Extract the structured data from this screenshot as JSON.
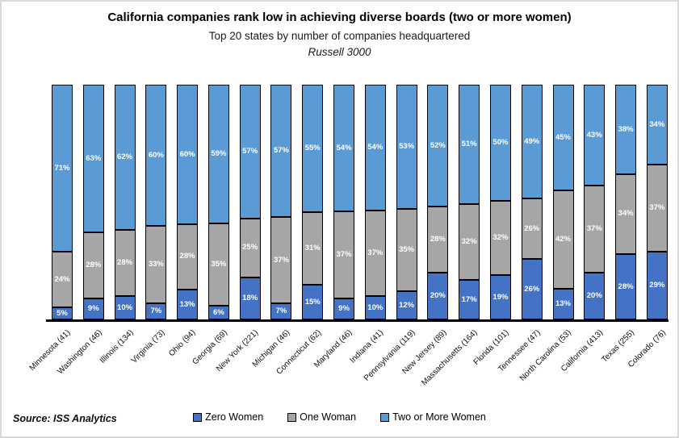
{
  "header": {
    "title": "California companies rank low in achieving diverse boards (two or more women)",
    "subtitle": "Top 20 states by number of companies headquartered",
    "subtitle2": "Russell 3000"
  },
  "source_note": "Source: ISS Analytics",
  "colors": {
    "zero_women": "#4472C4",
    "one_woman": "#A6A6A6",
    "two_or_more_women": "#5B9BD5",
    "bar_border": "#000000",
    "axis_line": "#000000",
    "frame_border": "#D9D9D9",
    "data_label_text": "#FFFFFF"
  },
  "chart_data": {
    "type": "bar",
    "stacked": true,
    "percent_stacked": true,
    "title": "California companies rank low in achieving diverse boards (two or more women)",
    "subtitle": "Top 20 states by number of companies headquartered",
    "subtitle2": "Russell 3000",
    "xlabel": "",
    "ylabel": "",
    "ylim": [
      0,
      100
    ],
    "grid": false,
    "y_axis_visible": false,
    "legend_position": "bottom",
    "value_suffix": "%",
    "categories": [
      "Minnesota (41)",
      "Washington (46)",
      "Illinois (134)",
      "Virginia (73)",
      "Ohio (94)",
      "Georgia (69)",
      "New York (221)",
      "Michigan (46)",
      "Connecticut (62)",
      "Maryland (46)",
      "Indiana (41)",
      "Pennsylvania (119)",
      "New Jersey (89)",
      "Massachusetts (164)",
      "Florida (101)",
      "Tennessee (47)",
      "North Carolina (53)",
      "California (413)",
      "Texas (255)",
      "Colorado (76)"
    ],
    "series": [
      {
        "name": "Zero Women",
        "color": "#4472C4",
        "values": [
          5,
          9,
          10,
          7,
          13,
          6,
          18,
          7,
          15,
          9,
          10,
          12,
          20,
          17,
          19,
          26,
          13,
          20,
          28,
          29
        ]
      },
      {
        "name": "One Woman",
        "color": "#A6A6A6",
        "values": [
          24,
          28,
          28,
          33,
          28,
          35,
          25,
          37,
          31,
          37,
          37,
          35,
          28,
          32,
          32,
          26,
          42,
          37,
          34,
          37
        ]
      },
      {
        "name": "Two or More Women",
        "color": "#5B9BD5",
        "values": [
          71,
          63,
          62,
          60,
          60,
          59,
          57,
          57,
          55,
          54,
          54,
          53,
          52,
          51,
          50,
          49,
          45,
          43,
          38,
          34
        ]
      }
    ]
  }
}
